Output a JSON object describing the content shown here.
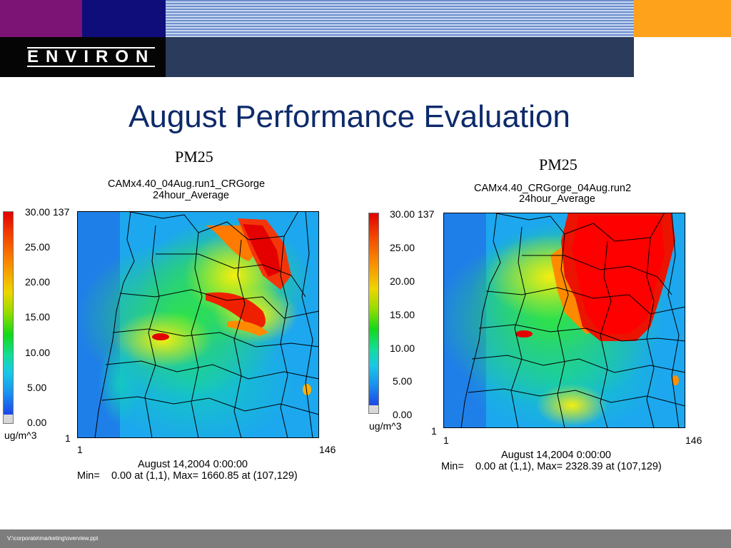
{
  "header": {
    "logo": "ENVIRON",
    "colors": {
      "purple": "#7b1474",
      "navy": "#0f0d7a",
      "stripe": "#6f8fcb",
      "orange": "#fda21a",
      "logo_bg": "#050505",
      "slate": "#2a3b5b"
    }
  },
  "slide": {
    "title": "August Performance Evaluation",
    "footer_path": "V:\\corporate\\marketing\\overview.ppt"
  },
  "panels": [
    {
      "species": "PM25",
      "run": "CAMx4.40_04Aug.run1_CRGorge",
      "averaging": "24hour_Average",
      "scale_ticks": [
        "30.00",
        "25.00",
        "20.00",
        "15.00",
        "10.00",
        "5.00",
        "0.00"
      ],
      "y_max": "137",
      "y_min": "1",
      "x_min": "1",
      "x_max": "146",
      "units": "ug/m^3",
      "date": "August 14,2004 0:00:00",
      "stats": "Min=    0.00 at (1,1), Max= 1660.85 at (107,129)"
    },
    {
      "species": "PM25",
      "run": "CAMx4.40_CRGorge_04Aug.run2",
      "averaging": "24hour_Average",
      "scale_ticks": [
        "30.00",
        "25.00",
        "20.00",
        "15.00",
        "10.00",
        "5.00",
        "0.00"
      ],
      "y_max": "137",
      "y_min": "1",
      "x_min": "1",
      "x_max": "146",
      "units": "ug/m^3",
      "date": "August 14,2004 0:00:00",
      "stats": "Min=    0.00 at (1,1), Max= 2328.39 at (107,129)"
    }
  ]
}
